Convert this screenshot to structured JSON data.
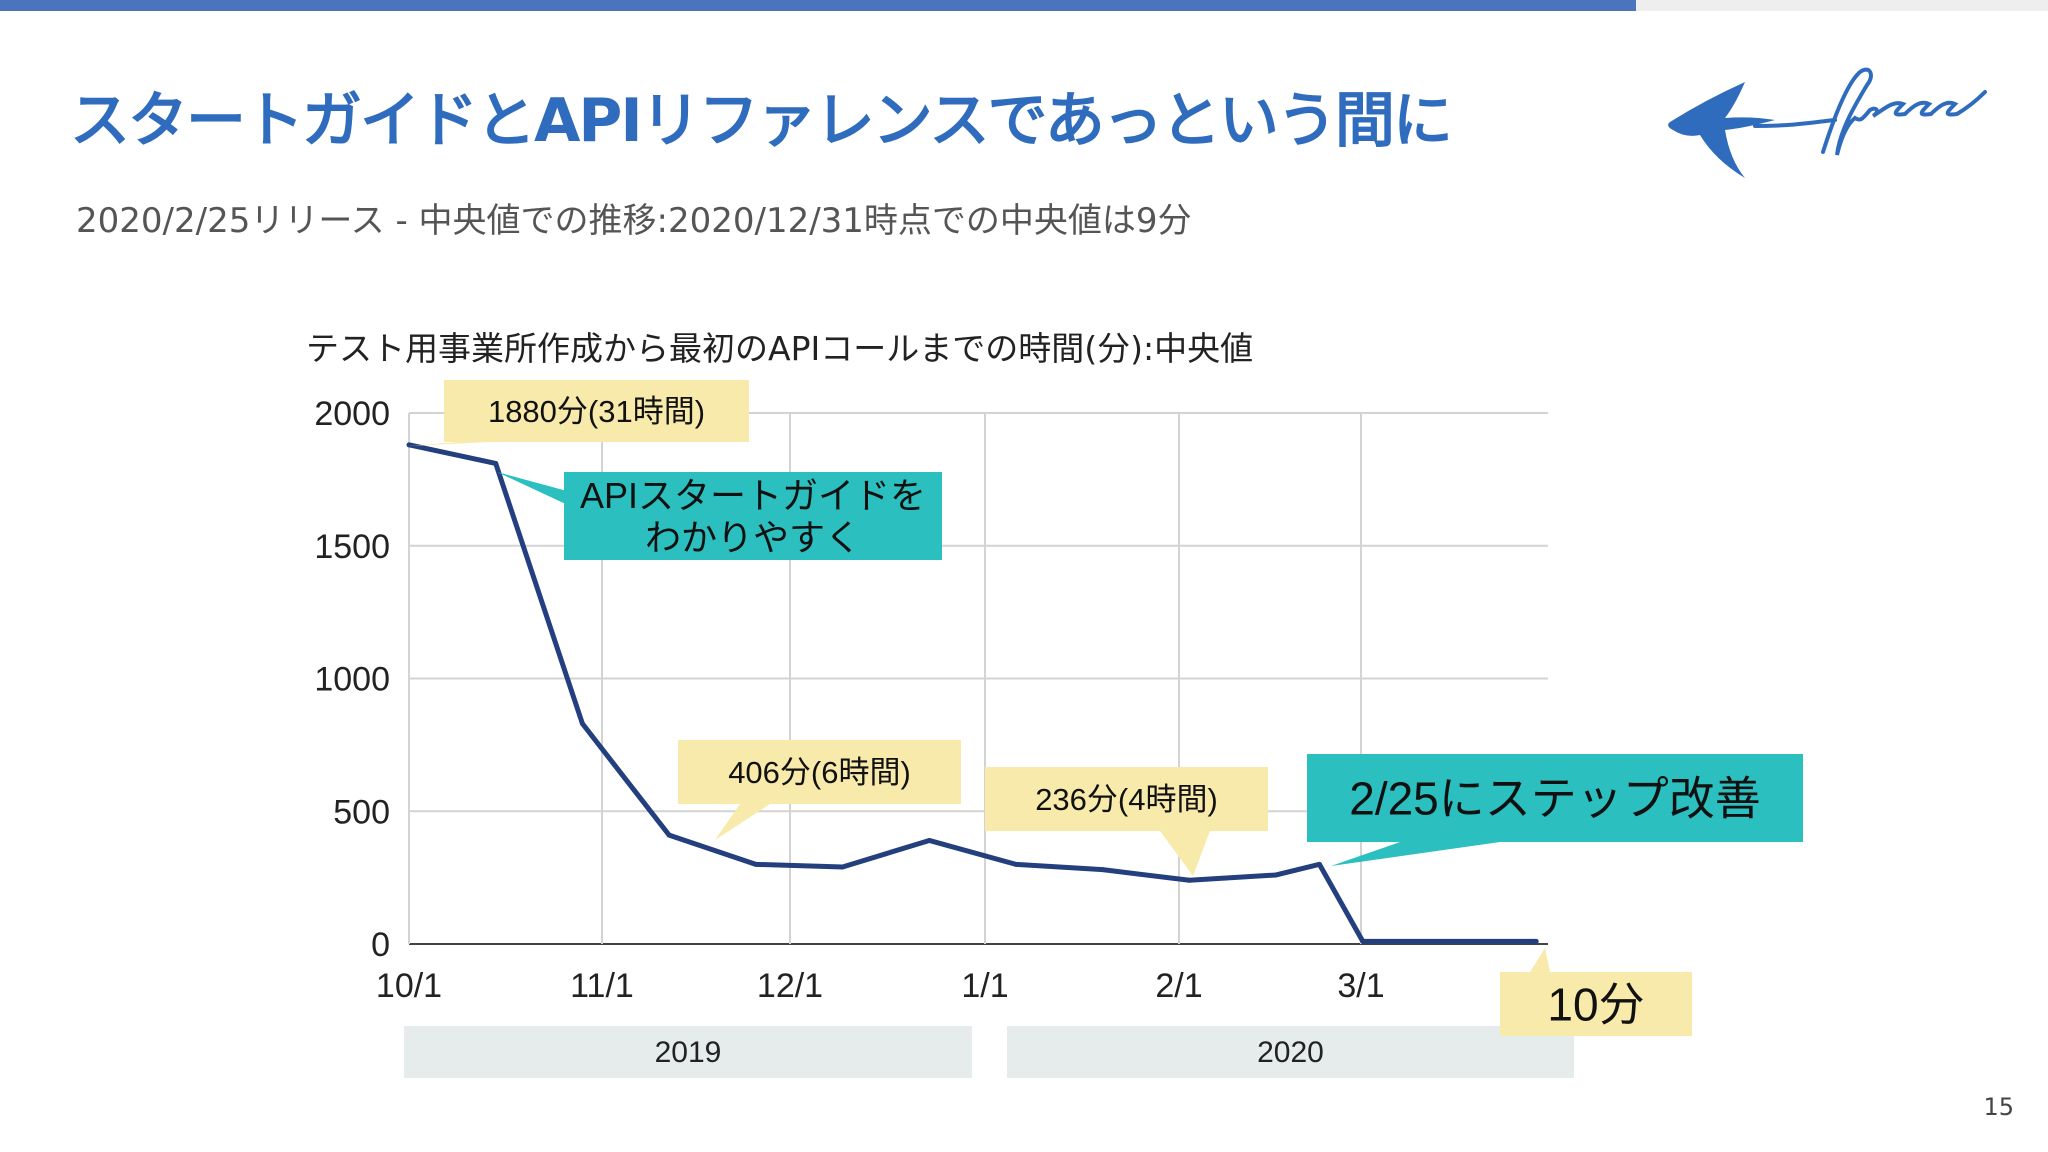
{
  "slide": {
    "title": "スタートガイドとAPIリファレンスであっという間に",
    "subtitle": "2020/2/25リリース - 中央値での推移:2020/12/31時点での中央値は9分",
    "page_number": "15",
    "logo_text": "freee"
  },
  "colors": {
    "title": "#2f6cbe",
    "line": "#233f7d",
    "callout_yellow": "#f7eaaa",
    "callout_teal": "#2bbfc0",
    "year_band": "#e6ebec"
  },
  "chart_data": {
    "type": "line",
    "title": "テスト用事業所作成から最初のAPIコールまでの時間(分):中央値",
    "ylim": [
      0,
      2000
    ],
    "yticks": [
      "2000",
      "1500",
      "1000",
      "500",
      "0"
    ],
    "x_tick_labels": [
      "10/1",
      "11/1",
      "12/1",
      "1/1",
      "2/1",
      "3/1"
    ],
    "year_groups": [
      "2019",
      "2020"
    ],
    "x_start": "2019-10-01",
    "grid": true,
    "series": [
      {
        "x": [
          "2019-10-01",
          "2019-10-15",
          "2019-10-29",
          "2019-11-12",
          "2019-11-26",
          "2019-12-10",
          "2019-12-24",
          "2020-01-07",
          "2020-01-21",
          "2020-02-04",
          "2020-02-18",
          "2020-02-25",
          "2020-03-03",
          "2020-03-31"
        ],
        "y": [
          1880,
          1810,
          830,
          410,
          300,
          290,
          390,
          300,
          280,
          240,
          260,
          300,
          10,
          10
        ]
      }
    ],
    "annotations": [
      {
        "text": "1880分(31時間)",
        "style": "yellow"
      },
      {
        "text": "APIスタートガイドを",
        "text2": "わかりやすく",
        "style": "teal"
      },
      {
        "text": "406分(6時間)",
        "style": "yellow"
      },
      {
        "text": "236分(4時間)",
        "style": "yellow"
      },
      {
        "text": "2/25にステップ改善",
        "style": "teal"
      },
      {
        "text": "10分",
        "style": "yellow"
      }
    ]
  }
}
